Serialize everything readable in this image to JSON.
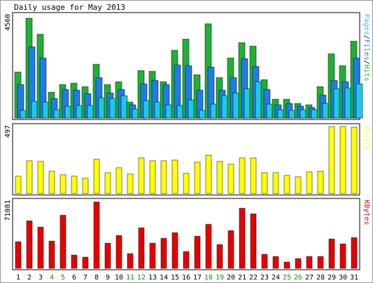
{
  "chart_data": {
    "type": "bar",
    "title": "Daily usage for May 2013",
    "categories": [
      "1",
      "2",
      "3",
      "4",
      "5",
      "6",
      "7",
      "8",
      "9",
      "10",
      "11",
      "12",
      "13",
      "14",
      "15",
      "16",
      "17",
      "18",
      "19",
      "20",
      "21",
      "22",
      "23",
      "24",
      "25",
      "26",
      "27",
      "28",
      "29",
      "30",
      "31"
    ],
    "weekend_days": [
      "4",
      "5",
      "11",
      "12",
      "18",
      "19",
      "25",
      "26"
    ],
    "panels": [
      {
        "id": "top",
        "max_label": "4560",
        "ylim": [
          0,
          4560
        ],
        "legend": [
          "Pages",
          "Files",
          "Hits"
        ],
        "series": [
          {
            "name": "Hits",
            "color": "#21b036",
            "values": [
              2050,
              4450,
              3710,
              1160,
              1480,
              1550,
              1400,
              2390,
              1490,
              1600,
              700,
              2100,
              2070,
              1610,
              3000,
              3490,
              1910,
              4180,
              1790,
              2680,
              3340,
              3180,
              1700,
              830,
              840,
              660,
              590,
              1400,
              2850,
              2330,
              3420
            ]
          },
          {
            "name": "Files",
            "color": "#1e7de6",
            "values": [
              1480,
              3160,
              2670,
              870,
              1260,
              1230,
              1080,
              1790,
              1130,
              1270,
              590,
              1530,
              1670,
              1500,
              2360,
              2320,
              1250,
              2250,
              1240,
              1800,
              2630,
              2290,
              1270,
              600,
              650,
              520,
              470,
              1020,
              1680,
              1600,
              2680
            ]
          },
          {
            "name": "Pages",
            "color": "#1fc8ea",
            "values": [
              330,
              750,
              700,
              380,
              520,
              550,
              560,
              910,
              880,
              980,
              400,
              770,
              700,
              590,
              560,
              820,
              350,
              610,
              1000,
              1130,
              1310,
              1600,
              620,
              360,
              340,
              380,
              360,
              650,
              1290,
              1340,
              1520
            ]
          }
        ]
      },
      {
        "id": "middle",
        "max_label": "497",
        "ylim": [
          0,
          497
        ],
        "legend": [
          "Visits"
        ],
        "series": [
          {
            "name": "Visits",
            "color": "#ffff00",
            "values": [
              127,
              245,
              240,
              165,
              140,
              130,
              115,
              255,
              155,
              193,
              145,
              262,
              242,
              245,
              250,
              150,
              233,
              287,
              237,
              215,
              265,
              265,
              157,
              157,
              137,
              125,
              159,
              166,
              497,
              497,
              490
            ]
          }
        ]
      },
      {
        "id": "bottom",
        "max_label": "71081",
        "ylim": [
          0,
          71081
        ],
        "legend": [
          "KBytes"
        ],
        "series": [
          {
            "name": "KBytes",
            "color": "#e80000",
            "values": [
              28000,
              50000,
              44000,
              29000,
              56500,
              14000,
              12000,
              70300,
              27000,
              35000,
              15500,
              43000,
              26500,
              32000,
              38000,
              17500,
              34000,
              47000,
              25000,
              40000,
              64000,
              57500,
              15000,
              12500,
              6500,
              10500,
              12500,
              12500,
              31000,
              26000,
              32500
            ]
          }
        ]
      }
    ],
    "colors": {
      "weekday_label": "#000000",
      "weekend_label": "#00a000",
      "panel_border": "#000000",
      "bar_outline": "#000000"
    }
  }
}
